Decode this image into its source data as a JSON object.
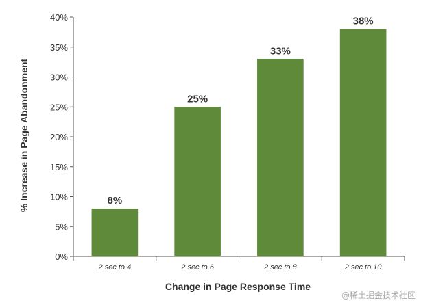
{
  "chart_data": {
    "type": "bar",
    "categories": [
      "2 sec to 4",
      "2 sec to 6",
      "2 sec to 8",
      "2 sec to 10"
    ],
    "values": [
      8,
      25,
      33,
      38
    ],
    "data_labels": [
      "8%",
      "25%",
      "33%",
      "38%"
    ],
    "title": "",
    "xlabel": "Change in Page Response Time",
    "ylabel": "% Increase in Page Abandonment",
    "ylim": [
      0,
      40
    ],
    "yticks": [
      0,
      5,
      10,
      15,
      20,
      25,
      30,
      35,
      40
    ],
    "ytick_labels": [
      "0%",
      "5%",
      "10%",
      "15%",
      "20%",
      "25%",
      "30%",
      "35%",
      "40%"
    ],
    "bar_color": "#5f8a3a",
    "grid": false,
    "legend": "none"
  },
  "watermark": "@稀土掘金技术社区"
}
